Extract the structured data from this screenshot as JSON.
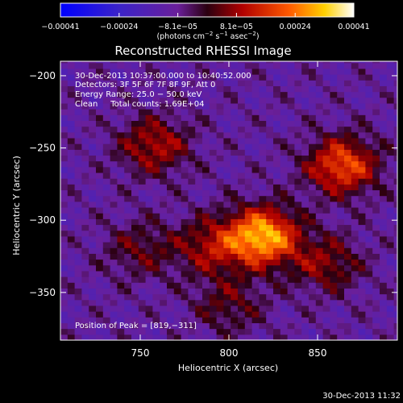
{
  "chart_data": {
    "type": "heatmap",
    "title": "Reconstructed RHESSI Image",
    "xlabel": "Heliocentric X (arcsec)",
    "ylabel": "Heliocentric Y (arcsec)",
    "xlim": [
      705,
      895
    ],
    "ylim": [
      -383,
      -190
    ],
    "x_ticks": [
      750,
      800,
      850
    ],
    "x_tick_labels": [
      "750",
      "800",
      "850"
    ],
    "y_ticks": [
      -200,
      -250,
      -300,
      -350
    ],
    "y_tick_labels": [
      "−200",
      "−250",
      "−300",
      "−350"
    ],
    "colorbar": {
      "range": [
        -0.00041,
        0.00041
      ],
      "tick_labels": [
        "−0.00041",
        "−0.00024",
        "−8.1e−05",
        "8.1e−05",
        "0.00024",
        "0.00041"
      ],
      "unit_label_parts": [
        "(photons cm",
        "−2",
        " s",
        "−1",
        " asec",
        "−2",
        ")"
      ]
    },
    "annotations": [
      "30-Dec-2013 10:37:00.000 to 10:40:52.000",
      "Detectors: 3F 5F 6F 7F 8F 9F, Att 0",
      "Energy Range: 25.0 − 50.0 keV",
      "Clean     Total counts: 1.69E+04"
    ],
    "peak_label": "Position of Peak = [819,−311]",
    "peak_position": [
      819,
      -311
    ],
    "total_counts": 16900,
    "energy_range_kev": [
      25.0,
      50.0
    ],
    "sources": [
      {
        "x": 819,
        "y": -311,
        "peak": 0.00041
      },
      {
        "x": 864,
        "y": -262,
        "peak": 0.0003
      },
      {
        "x": 758,
        "y": -248,
        "peak": 0.0002
      },
      {
        "x": 790,
        "y": -318,
        "peak": 0.00018
      },
      {
        "x": 855,
        "y": -330,
        "peak": 0.00016
      },
      {
        "x": 750,
        "y": -320,
        "peak": 0.00012
      },
      {
        "x": 800,
        "y": -358,
        "peak": 0.00012
      }
    ]
  },
  "footer": {
    "timestamp": "30-Dec-2013 11:32"
  }
}
